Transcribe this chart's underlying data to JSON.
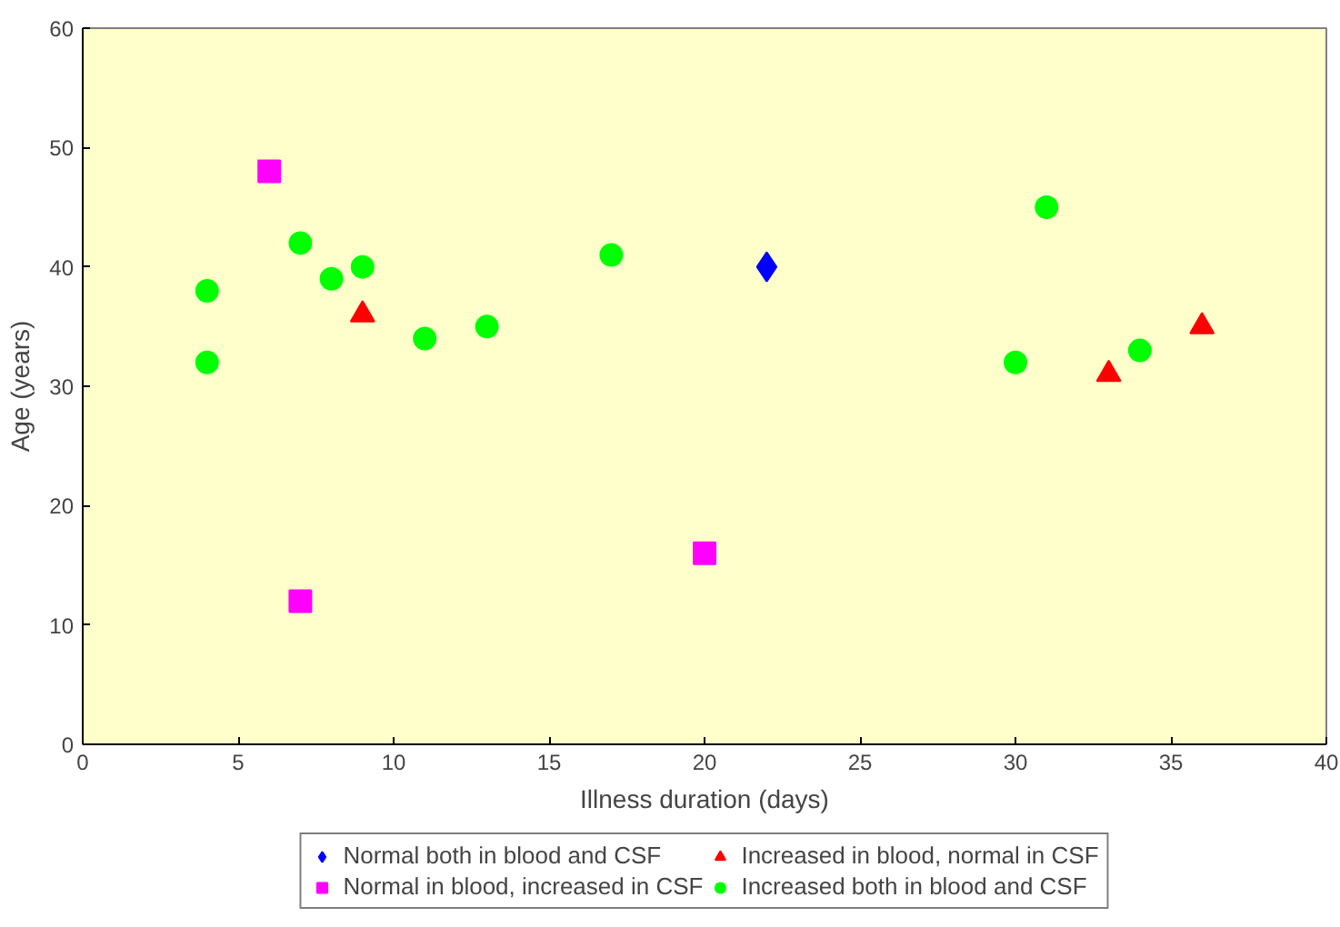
{
  "chart_data": {
    "type": "scatter",
    "xlabel": "Illness duration (days)",
    "ylabel": "Age (years)",
    "xlim": [
      0,
      40
    ],
    "ylim": [
      0,
      60
    ],
    "xticks": [
      0,
      5,
      10,
      15,
      20,
      25,
      30,
      35,
      40
    ],
    "yticks": [
      0,
      10,
      20,
      30,
      40,
      50,
      60
    ],
    "grid": false,
    "legend": "bottom",
    "series": [
      {
        "name": "Normal both in blood and CSF",
        "color": "#0000ff",
        "marker": "diamond",
        "x": [
          22
        ],
        "values": [
          40
        ]
      },
      {
        "name": "Normal in blood, increased in CSF",
        "color": "#ff00ff",
        "marker": "square",
        "x": [
          6,
          7,
          20
        ],
        "values": [
          48,
          12,
          16
        ]
      },
      {
        "name": "Increased in blood, normal in CSF",
        "color": "#ff0000",
        "marker": "triangle",
        "x": [
          9,
          33,
          36
        ],
        "values": [
          36,
          31,
          35
        ]
      },
      {
        "name": "Increased both in blood and CSF",
        "color": "#00ff00",
        "marker": "circle",
        "x": [
          4,
          4,
          7,
          8,
          9,
          11,
          13,
          17,
          30,
          31,
          34
        ],
        "values": [
          38,
          32,
          42,
          39,
          40,
          34,
          35,
          41,
          32,
          45,
          33
        ]
      }
    ]
  }
}
